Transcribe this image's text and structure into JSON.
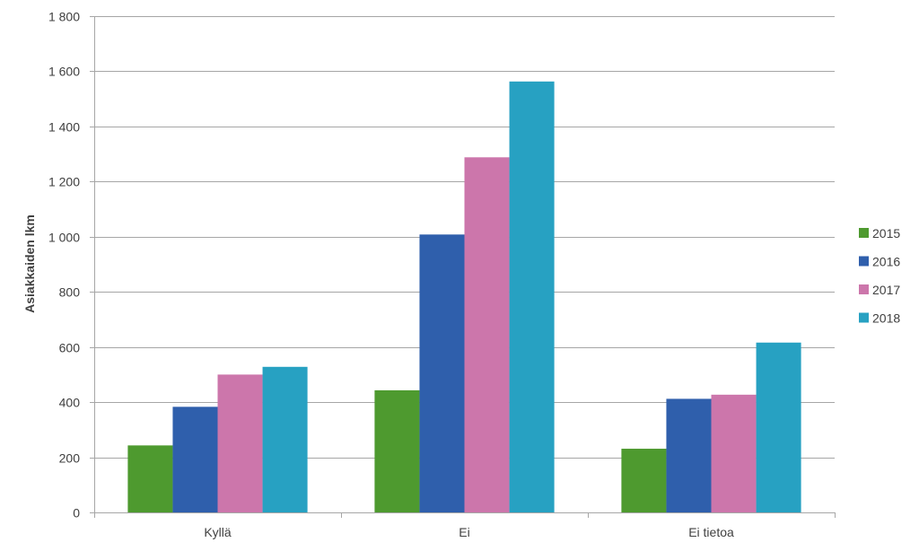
{
  "chart_data": {
    "type": "bar",
    "title": "",
    "xlabel": "",
    "ylabel": "Asiakkaiden lkm",
    "categories": [
      "Kyllä",
      "Ei",
      "Ei tietoa"
    ],
    "ylim": [
      0,
      1800
    ],
    "yticks": [
      0,
      200,
      400,
      600,
      800,
      1000,
      1200,
      1400,
      1600,
      1800
    ],
    "ytick_labels": [
      "0",
      "200",
      "400",
      "600",
      "800",
      "1 000",
      "1 200",
      "1 400",
      "1 600",
      "1 800"
    ],
    "grid": true,
    "legend_position": "right",
    "series": [
      {
        "name": "2015",
        "color": "#4e9a2f",
        "values": [
          243,
          443,
          231
        ]
      },
      {
        "name": "2016",
        "color": "#2f5fac",
        "values": [
          383,
          1008,
          412
        ]
      },
      {
        "name": "2017",
        "color": "#cc76ab",
        "values": [
          500,
          1288,
          427
        ]
      },
      {
        "name": "2018",
        "color": "#27a1c2",
        "values": [
          528,
          1563,
          616
        ]
      }
    ]
  }
}
